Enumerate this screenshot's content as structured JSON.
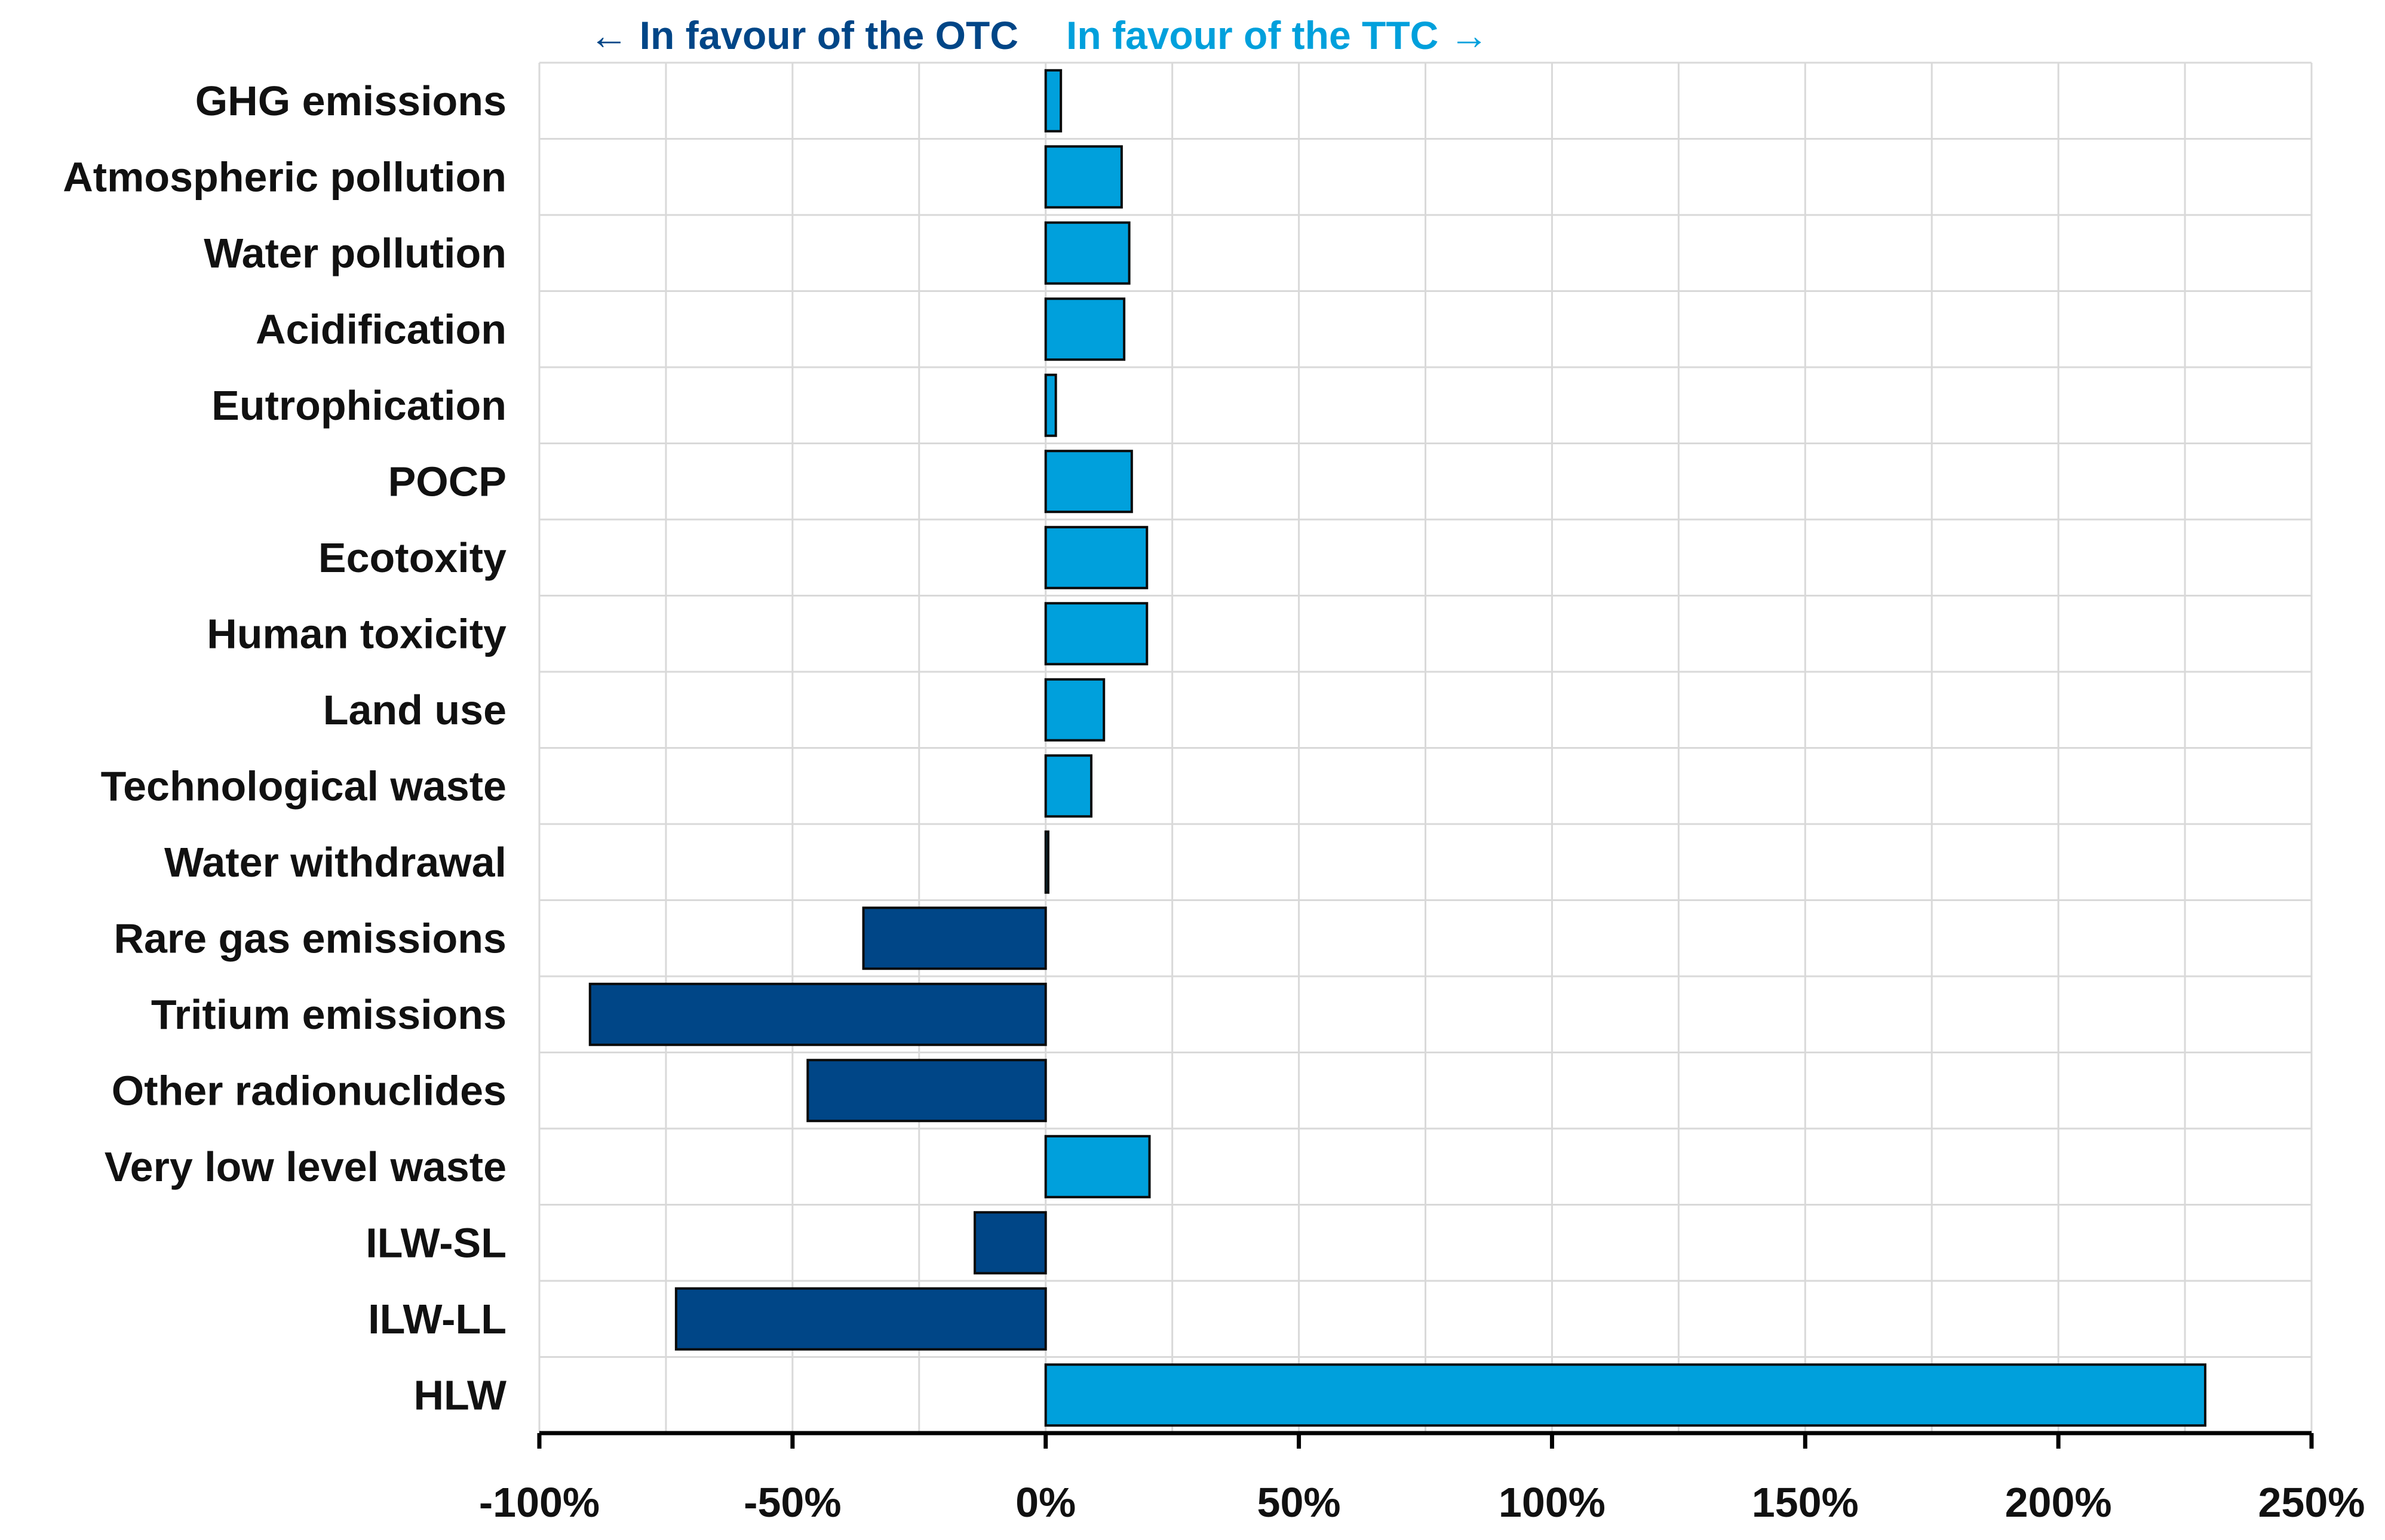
{
  "chart_data": {
    "type": "bar",
    "orientation": "horizontal",
    "title": "",
    "xlabel": "",
    "ylabel": "",
    "header_left": "← In favour of the OTC",
    "header_right": "In favour of the TTC →",
    "categories": [
      "GHG emissions",
      "Atmospheric pollution",
      "Water pollution",
      "Acidification",
      "Eutrophication",
      "POCP",
      "Ecotoxity",
      "Human toxicity",
      "Land use",
      "Technological waste",
      "Water withdrawal",
      "Rare gas emissions",
      "Tritium emissions",
      "Other radionuclides",
      "Very low level waste",
      "ILW-SL",
      "ILW-LL",
      "HLW"
    ],
    "values": [
      3,
      15,
      16.5,
      15.5,
      2,
      17,
      20,
      20,
      11.5,
      9,
      0.5,
      -36,
      -90,
      -47,
      20.5,
      -14,
      -73,
      229
    ],
    "xlim": [
      -100,
      250
    ],
    "xticks": [
      -100,
      -50,
      0,
      50,
      100,
      150,
      200,
      250
    ],
    "xtick_labels": [
      "-100%",
      "-50%",
      "0%",
      "50%",
      "100%",
      "150%",
      "200%",
      "250%"
    ],
    "grid": true,
    "colors": {
      "positive": "#00A0DC",
      "negative": "#004687",
      "bar_outline": "#0a0a0a",
      "grid": "#d9d9d9",
      "axis": "#000000",
      "header_left": "#004687",
      "header_right": "#00A0DC"
    }
  }
}
